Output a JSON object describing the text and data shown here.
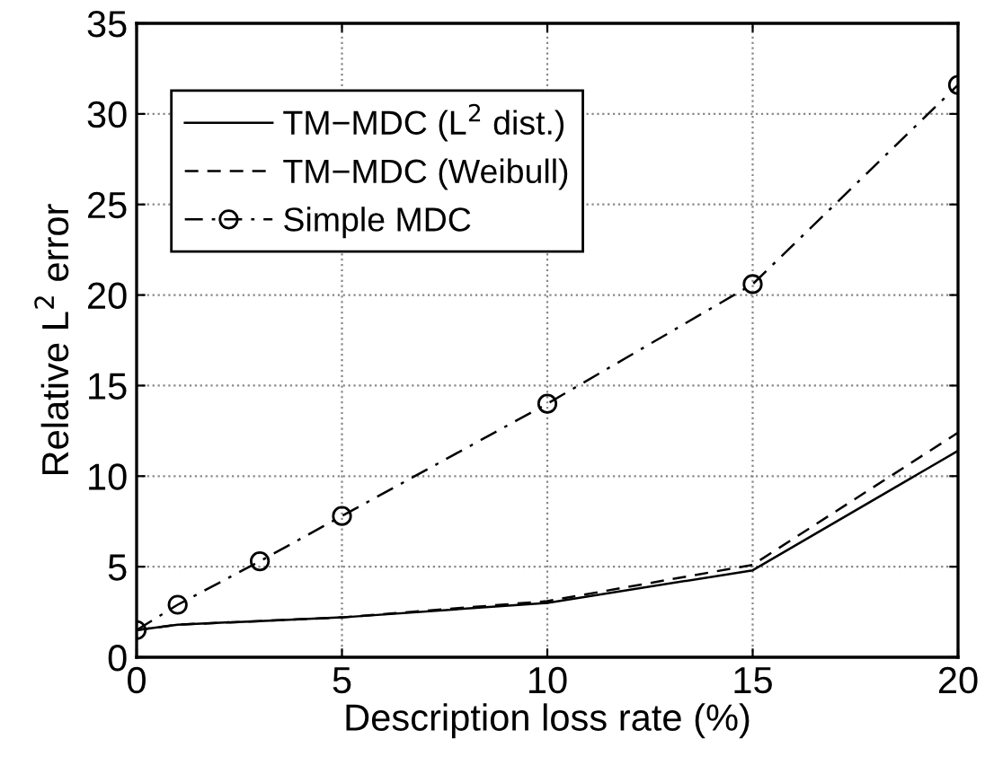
{
  "chart_data": {
    "type": "line",
    "xlabel": "Description loss rate (%)",
    "ylabel": "Relative L$^{2}$ error",
    "x": [
      0,
      1,
      3,
      5,
      10,
      15,
      20
    ],
    "series": [
      {
        "name": "TM−MDC (L$^{2}$ dist.)",
        "color": "#000000",
        "line_style": "solid",
        "marker": "none",
        "values": [
          1.5,
          1.8,
          2.0,
          2.2,
          3.0,
          4.8,
          11.4
        ]
      },
      {
        "name": "TM−MDC (Weibull)",
        "color": "#000000",
        "line_style": "dashed",
        "marker": "none",
        "values": [
          1.5,
          1.8,
          2.0,
          2.2,
          3.1,
          5.1,
          12.4
        ]
      },
      {
        "name": "Simple MDC",
        "color": "#000000",
        "line_style": "dashdot",
        "marker": "circle",
        "values": [
          1.5,
          2.9,
          5.3,
          7.8,
          14.0,
          20.6,
          31.6
        ]
      }
    ],
    "xlim": [
      0,
      20
    ],
    "xticks": [
      0,
      5,
      10,
      15,
      20
    ],
    "ylim": [
      0,
      35
    ],
    "yticks": [
      0,
      5,
      10,
      15,
      20,
      25,
      30,
      35
    ],
    "grid": true,
    "legend": "top left"
  }
}
